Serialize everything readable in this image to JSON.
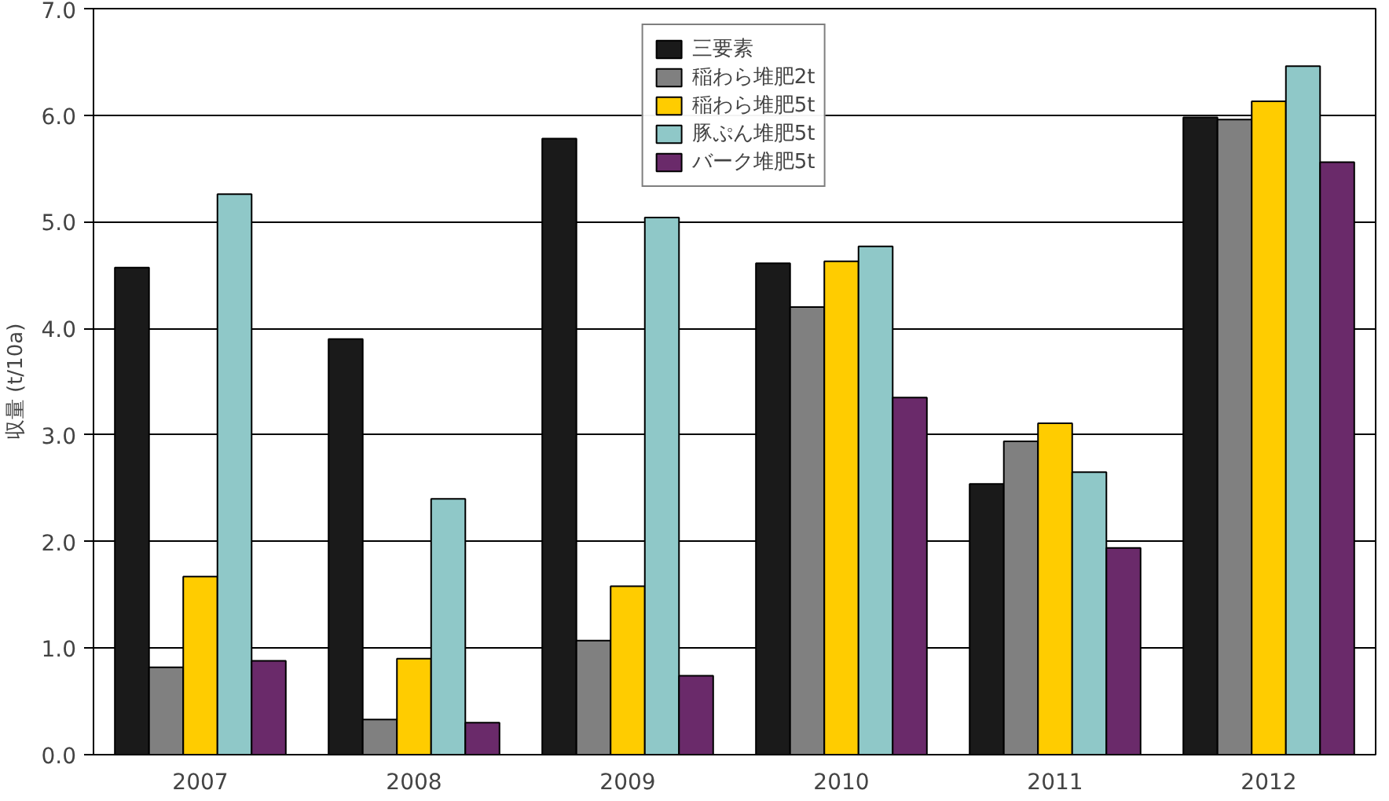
{
  "chart_data": {
    "type": "bar",
    "ylabel": "収量 (t/10a)",
    "categories": [
      "2007",
      "2008",
      "2009",
      "2010",
      "2011",
      "2012"
    ],
    "series": [
      {
        "name": "三要素",
        "color": "#1a1a1a",
        "values": [
          4.57,
          3.9,
          5.78,
          4.61,
          2.54,
          5.98
        ]
      },
      {
        "name": "稲わら堆肥2t",
        "color": "#808080",
        "values": [
          0.82,
          0.33,
          1.07,
          4.2,
          2.94,
          5.96
        ]
      },
      {
        "name": "稲わら堆肥5t",
        "color": "#ffcc00",
        "values": [
          1.67,
          0.9,
          1.58,
          4.63,
          3.11,
          6.13
        ]
      },
      {
        "name": "豚ぷん堆肥5t",
        "color": "#8fc8c8",
        "values": [
          5.26,
          2.4,
          5.04,
          4.77,
          2.65,
          6.46
        ]
      },
      {
        "name": "バーク堆肥5t",
        "color": "#6a2a6a",
        "values": [
          0.88,
          0.3,
          0.74,
          3.35,
          1.94,
          5.56
        ]
      }
    ],
    "ylim": [
      0,
      7
    ],
    "yticks": [
      {
        "value": 0,
        "label": "0.0"
      },
      {
        "value": 1,
        "label": "1.0"
      },
      {
        "value": 2,
        "label": "2.0"
      },
      {
        "value": 3,
        "label": "3.0"
      },
      {
        "value": 4,
        "label": "4.0"
      },
      {
        "value": 5,
        "label": "5.0"
      },
      {
        "value": 6,
        "label": "6.0"
      },
      {
        "value": 7,
        "label": "7.0"
      }
    ],
    "grid": "y",
    "legend": "top"
  }
}
